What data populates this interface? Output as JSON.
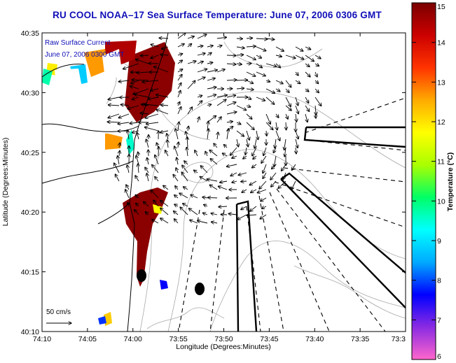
{
  "title": "RU COOL  NOAA–17  Sea Surface Temperature:  June 07, 2006 0306 GMT",
  "legend": {
    "line1": "Raw Surface Current",
    "line2": "June 07, 2006 0300 GMT"
  },
  "scale_label": "50 cm/s",
  "axes": {
    "xlabel": "Longitude (Degrees:Minutes)",
    "ylabel": "Latitude (Degrees:Minutes)",
    "x_ticks": [
      "74:10",
      "74:05",
      "74:00",
      "73:55",
      "73:50",
      "73:45",
      "73:40",
      "73:35",
      "73:3"
    ],
    "y_ticks": [
      "40:35",
      "40:30",
      "40:25",
      "40:20",
      "40:15",
      "40:10"
    ]
  },
  "colorbar": {
    "label": "Temperature (°C)",
    "min": 6,
    "max": 15,
    "ticks": [
      "15",
      "14",
      "13",
      "12",
      "11",
      "10",
      "9",
      "8",
      "7",
      "6"
    ],
    "colors": [
      "#ff66cc",
      "#8a2be2",
      "#0000ff",
      "#00aaff",
      "#00ffff",
      "#00ff66",
      "#aaff00",
      "#ffff00",
      "#ffaa00",
      "#ff3300",
      "#cc0000",
      "#7a0000"
    ]
  },
  "colors": {
    "title": "#1010b8",
    "land": "#ffffff",
    "warm_water": "#8b0000"
  }
}
